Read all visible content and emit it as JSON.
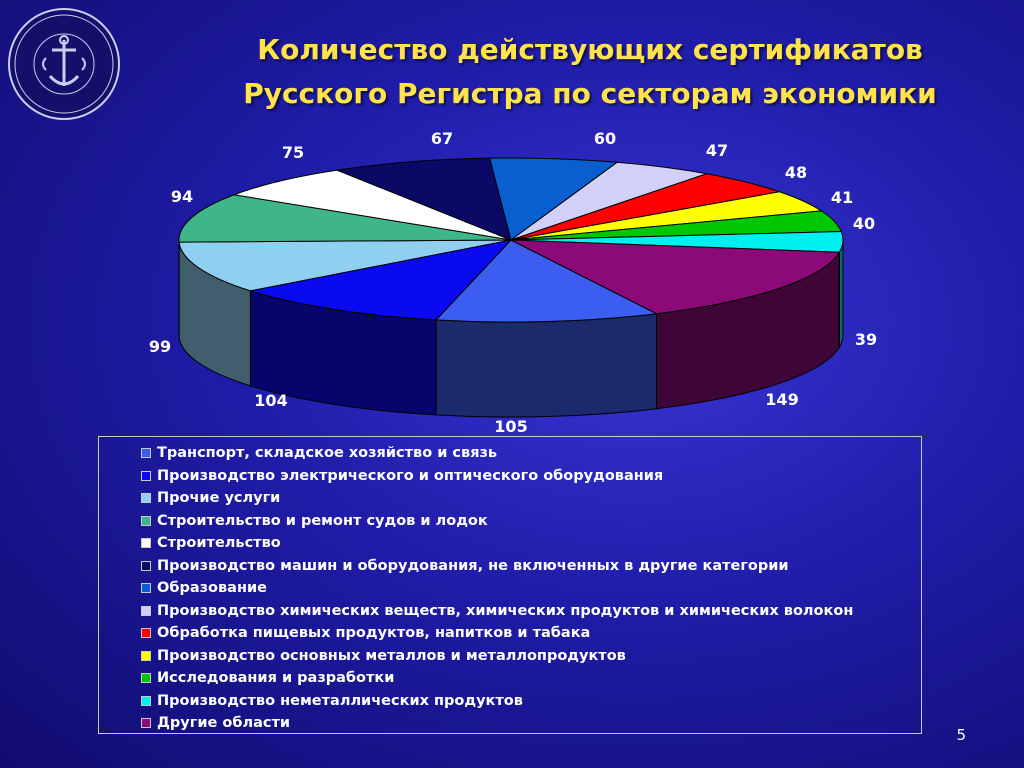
{
  "slide": {
    "title_line1": "Количество действующих сертификатов",
    "title_line2": "Русского Регистра по секторам экономики",
    "page_number": "5",
    "logo_text_top": "РУССКИЙ РЕГИСТР",
    "logo_text_bottom": "RUSSIAN REGISTER"
  },
  "chart_data": {
    "type": "pie",
    "three_d": true,
    "title": "",
    "legend_position": "bottom",
    "categories": [
      "Транспорт, складское хозяйство и связь",
      "Производство электрического и оптического оборудования",
      "Прочие услуги",
      "Строительство и ремонт судов и лодок",
      "Строительство",
      "Производство машин и оборудования, не включенных в другие категории",
      "Образование",
      "Производство химических веществ, химических продуктов и химических волокон",
      "Обработка пищевых продуктов, напитков и табака",
      "Производство основных металлов и металлопродуктов",
      "Исследования и разработки",
      "Производство неметаллических продуктов",
      "Другие области"
    ],
    "values": [
      105,
      104,
      99,
      94,
      67,
      75,
      60,
      47,
      48,
      41,
      40,
      39,
      149
    ],
    "colors": [
      "#3b5df0",
      "#0a0af0",
      "#8fd0f0",
      "#3fb58a",
      "#ffffff",
      "#0a0a66",
      "#0a5fd0",
      "#d0d0f8",
      "#ff0000",
      "#ffff00",
      "#00c800",
      "#00f0f0",
      "#8c0a78"
    ]
  }
}
